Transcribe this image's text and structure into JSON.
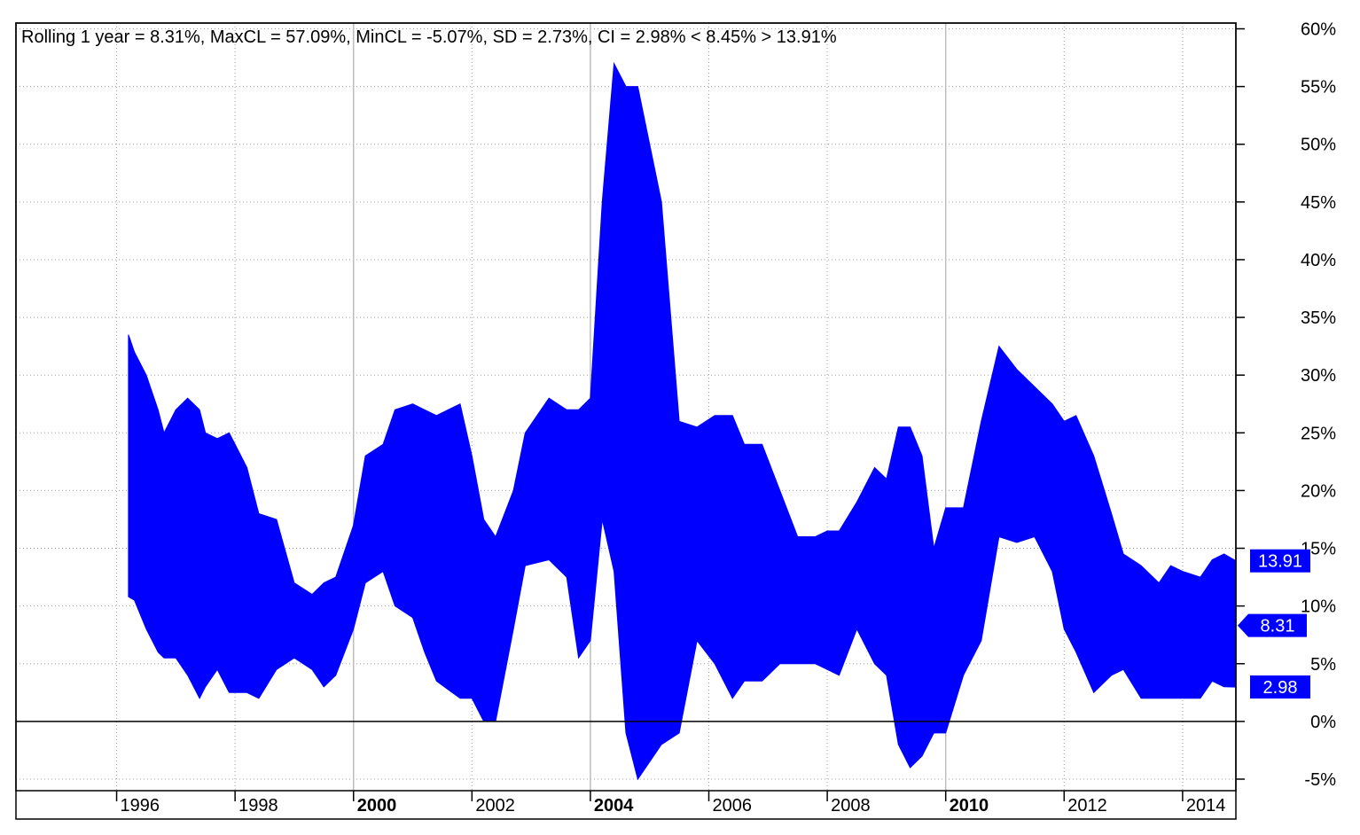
{
  "chart_data": {
    "type": "area",
    "title": "Rolling 1 year = 8.31%, MaxCL = 57.09%, MinCL = -5.07%, SD = 2.73%, CI = 2.98% < 8.45% > 13.91%",
    "xlabel": "",
    "ylabel": "",
    "xlim": [
      1994.3,
      2014.9
    ],
    "ylim": [
      -6,
      60.5
    ],
    "grid": true,
    "fill_color": "#0000ff",
    "x_ticks": [
      {
        "value": 1996,
        "label": "1996",
        "major": false
      },
      {
        "value": 1998,
        "label": "1998",
        "major": false
      },
      {
        "value": 2000,
        "label": "2000",
        "major": true
      },
      {
        "value": 2002,
        "label": "2002",
        "major": false
      },
      {
        "value": 2004,
        "label": "2004",
        "major": true
      },
      {
        "value": 2006,
        "label": "2006",
        "major": false
      },
      {
        "value": 2008,
        "label": "2008",
        "major": false
      },
      {
        "value": 2010,
        "label": "2010",
        "major": true
      },
      {
        "value": 2012,
        "label": "2012",
        "major": false
      },
      {
        "value": 2014,
        "label": "2014",
        "major": false
      }
    ],
    "y_ticks": [
      {
        "value": 60,
        "label": "60%"
      },
      {
        "value": 55,
        "label": "55%"
      },
      {
        "value": 50,
        "label": "50%"
      },
      {
        "value": 45,
        "label": "45%"
      },
      {
        "value": 40,
        "label": "40%"
      },
      {
        "value": 35,
        "label": "35%"
      },
      {
        "value": 30,
        "label": "30%"
      },
      {
        "value": 25,
        "label": "25%"
      },
      {
        "value": 20,
        "label": "20%"
      },
      {
        "value": 15,
        "label": "15%"
      },
      {
        "value": 10,
        "label": "10%"
      },
      {
        "value": 5,
        "label": "5%"
      },
      {
        "value": 0,
        "label": "0%"
      },
      {
        "value": -5,
        "label": "-5%"
      }
    ],
    "series": [
      {
        "name": "Upper",
        "x": [
          1996.2,
          1996.3,
          1996.5,
          1996.7,
          1996.8,
          1997.0,
          1997.2,
          1997.4,
          1997.5,
          1997.7,
          1997.9,
          1998.2,
          1998.4,
          1998.7,
          1999.0,
          1999.3,
          1999.5,
          1999.7,
          2000.0,
          2000.2,
          2000.5,
          2000.7,
          2001.0,
          2001.2,
          2001.4,
          2001.8,
          2002.0,
          2002.2,
          2002.4,
          2002.7,
          2002.9,
          2003.3,
          2003.6,
          2003.8,
          2004.0,
          2004.2,
          2004.4,
          2004.6,
          2004.8,
          2005.2,
          2005.5,
          2005.8,
          2006.1,
          2006.4,
          2006.6,
          2006.9,
          2007.2,
          2007.5,
          2007.8,
          2008.0,
          2008.2,
          2008.5,
          2008.8,
          2009.0,
          2009.2,
          2009.4,
          2009.6,
          2009.8,
          2010.0,
          2010.3,
          2010.6,
          2010.9,
          2011.2,
          2011.5,
          2011.8,
          2012.0,
          2012.2,
          2012.5,
          2012.8,
          2013.0,
          2013.3,
          2013.6,
          2013.8,
          2014.0,
          2014.3,
          2014.5,
          2014.7,
          2014.9
        ],
        "values": [
          33.5,
          32,
          30,
          27,
          25,
          27,
          28,
          27,
          25,
          24.5,
          25,
          22,
          18,
          17.5,
          12,
          11,
          12,
          12.5,
          17,
          23,
          24,
          27,
          27.5,
          27,
          26.5,
          27.5,
          23,
          17.5,
          16,
          20,
          25,
          28,
          27,
          27,
          28,
          45,
          57,
          55,
          55,
          45,
          26,
          25.5,
          26.5,
          26.5,
          24,
          24,
          20,
          16,
          16,
          16.5,
          16.5,
          19,
          22,
          21,
          25.5,
          25.5,
          23,
          15,
          18.5,
          18.5,
          26,
          32.5,
          30.5,
          29,
          27.5,
          26,
          26.5,
          23,
          18,
          14.5,
          13.5,
          12,
          13.5,
          13,
          12.5,
          14,
          14.5,
          13.91
        ]
      },
      {
        "name": "Lower",
        "x": [
          1996.2,
          1996.3,
          1996.5,
          1996.7,
          1996.8,
          1997.0,
          1997.2,
          1997.4,
          1997.5,
          1997.7,
          1997.9,
          1998.2,
          1998.4,
          1998.7,
          1999.0,
          1999.3,
          1999.5,
          1999.7,
          2000.0,
          2000.2,
          2000.5,
          2000.7,
          2001.0,
          2001.2,
          2001.4,
          2001.8,
          2002.0,
          2002.2,
          2002.4,
          2002.7,
          2002.9,
          2003.3,
          2003.6,
          2003.8,
          2004.0,
          2004.2,
          2004.4,
          2004.6,
          2004.8,
          2005.2,
          2005.5,
          2005.8,
          2006.1,
          2006.4,
          2006.6,
          2006.9,
          2007.2,
          2007.5,
          2007.8,
          2008.0,
          2008.2,
          2008.5,
          2008.8,
          2009.0,
          2009.2,
          2009.4,
          2009.6,
          2009.8,
          2010.0,
          2010.3,
          2010.6,
          2010.9,
          2011.2,
          2011.5,
          2011.8,
          2012.0,
          2012.2,
          2012.5,
          2012.8,
          2013.0,
          2013.3,
          2013.6,
          2013.8,
          2014.0,
          2014.3,
          2014.5,
          2014.7,
          2014.9
        ],
        "values": [
          10.8,
          10.5,
          8,
          6,
          5.5,
          5.5,
          4,
          2,
          3,
          4.5,
          2.5,
          2.5,
          2,
          4.5,
          5.5,
          4.5,
          3,
          4,
          8,
          12,
          13,
          10,
          9,
          6,
          3.5,
          2,
          2,
          0,
          0,
          8,
          13.5,
          14,
          12.5,
          5.5,
          7,
          17.5,
          13,
          -1,
          -5,
          -2,
          -1,
          7,
          5,
          2,
          3.5,
          3.5,
          5,
          5,
          5,
          4.5,
          4,
          8,
          5,
          4,
          -2,
          -4,
          -3,
          -1,
          -1,
          4,
          7,
          16,
          15.5,
          16,
          13,
          8,
          6,
          2.5,
          4,
          4.5,
          2,
          2,
          2,
          2,
          2,
          3.5,
          3,
          2.98
        ]
      }
    ],
    "markers": [
      {
        "label": "13.91",
        "value": 13.91
      },
      {
        "label": "8.31",
        "value": 8.31
      },
      {
        "label": "2.98",
        "value": 2.98
      }
    ],
    "reference_line": 0
  }
}
